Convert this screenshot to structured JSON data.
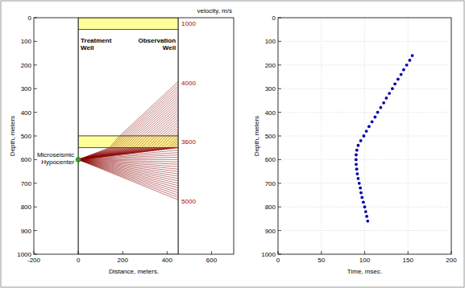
{
  "chart_data": [
    {
      "type": "raypath",
      "xlabel": "Distance, meters.",
      "ylabel": "Depth, meters",
      "xlim": [
        -200,
        700
      ],
      "xticks": [
        -200,
        0,
        200,
        400,
        600
      ],
      "ylim": [
        0,
        1000
      ],
      "yticks": [
        0,
        100,
        200,
        300,
        400,
        500,
        600,
        700,
        800,
        900,
        1000
      ],
      "annotation": "velocity, m/s",
      "wells": [
        {
          "x": 0,
          "label": "Treatment Well"
        },
        {
          "x": 450,
          "label": "Observation Well"
        }
      ],
      "source": {
        "x": 0,
        "depth": 600,
        "label": "Microseismic Hypocenter",
        "color": "#22aa22"
      },
      "layers": [
        {
          "top": 0,
          "bottom": 50,
          "velocity": 1000,
          "color": "#ffff99"
        },
        {
          "top": 50,
          "bottom": 500,
          "velocity": 4000,
          "color": "#ffffff"
        },
        {
          "top": 500,
          "bottom": 550,
          "velocity": 3600,
          "color": "#ffff99"
        },
        {
          "top": 550,
          "bottom": 1000,
          "velocity": 5000,
          "color": "#ffffff"
        }
      ],
      "ray_depths": [
        270,
        280,
        290,
        300,
        310,
        320,
        330,
        340,
        350,
        360,
        370,
        380,
        390,
        400,
        410,
        420,
        430,
        440,
        450,
        460,
        470,
        480,
        490,
        500,
        510,
        520,
        530,
        540,
        550,
        560,
        570,
        580,
        590,
        600,
        610,
        620,
        630,
        640,
        650,
        660,
        670,
        680,
        690,
        700,
        710,
        720,
        730,
        740,
        750,
        760,
        770
      ],
      "color": "#8b0000"
    },
    {
      "type": "scatter",
      "xlabel": "Time, msec.",
      "ylabel": "Depth, meters",
      "xlim": [
        0,
        200
      ],
      "xticks": [
        0,
        50,
        100,
        150,
        200
      ],
      "ylim": [
        0,
        1000
      ],
      "yticks": [
        0,
        100,
        200,
        300,
        400,
        500,
        600,
        700,
        800,
        900,
        1000
      ],
      "grid": true,
      "x": [
        155,
        152,
        148.5,
        145,
        142,
        138.5,
        135,
        132,
        128.5,
        125,
        122,
        118.5,
        115,
        112,
        108.5,
        105,
        102,
        99,
        95.5,
        92.5,
        91,
        90.2,
        90,
        90.2,
        90.8,
        91.5,
        92.5,
        93.7,
        95,
        95.8,
        97,
        98.5,
        100,
        101.2,
        102.4,
        103.5
      ],
      "values": [
        160,
        180,
        200,
        220,
        240,
        260,
        280,
        300,
        320,
        340,
        360,
        380,
        400,
        420,
        440,
        460,
        480,
        500,
        520,
        540,
        560,
        580,
        600,
        620,
        640,
        660,
        680,
        700,
        720,
        740,
        760,
        780,
        800,
        820,
        840,
        860
      ],
      "color": "#0000aa",
      "marker": "circle"
    }
  ]
}
